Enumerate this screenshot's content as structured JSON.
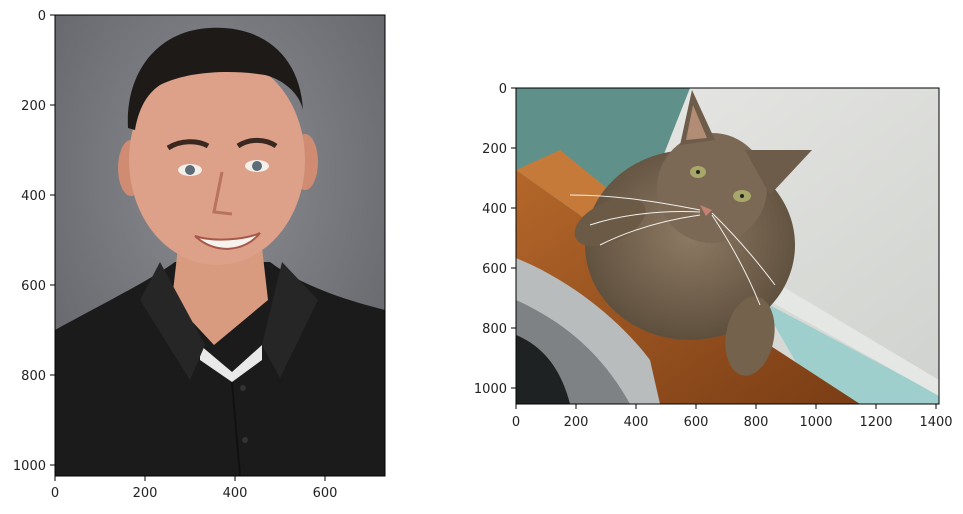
{
  "figure": {
    "panels": [
      {
        "name": "portrait",
        "description_icon": "man-portrait-image",
        "xticks": [
          0,
          200,
          400,
          600
        ],
        "yticks": [
          0,
          200,
          400,
          600,
          800,
          1000
        ],
        "x_range": [
          0,
          733
        ],
        "y_range": [
          1024,
          0
        ]
      },
      {
        "name": "cat",
        "description_icon": "cat-photo-image",
        "xticks": [
          0,
          200,
          400,
          600,
          800,
          1000,
          1200,
          1400
        ],
        "yticks": [
          0,
          200,
          400,
          600,
          800,
          1000
        ],
        "x_range": [
          0,
          1408
        ],
        "y_range": [
          1056,
          0
        ]
      }
    ]
  },
  "labels": {
    "p1_x": [
      "0",
      "200",
      "400",
      "600"
    ],
    "p1_y": [
      "0",
      "200",
      "400",
      "600",
      "800",
      "1000"
    ],
    "p2_x": [
      "0",
      "200",
      "400",
      "600",
      "800",
      "1000",
      "1200",
      "1400"
    ],
    "p2_y": [
      "0",
      "200",
      "400",
      "600",
      "800",
      "1000"
    ]
  }
}
